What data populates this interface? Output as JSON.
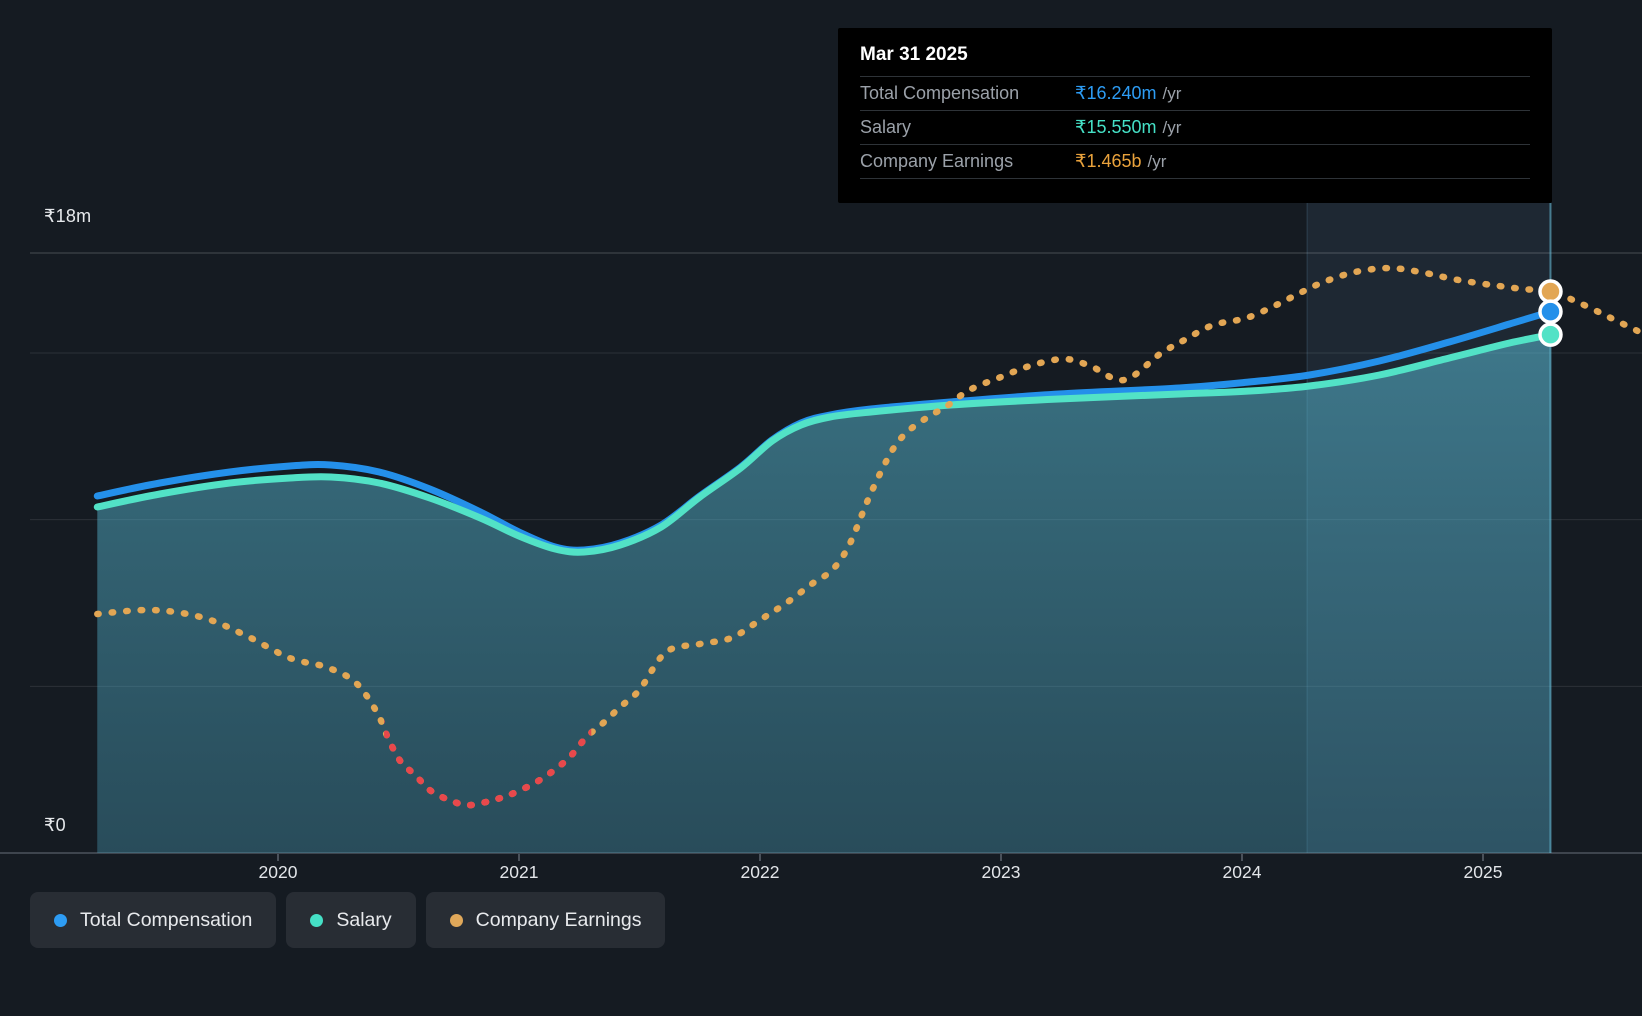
{
  "y_axis": {
    "top_label": "₹18m",
    "bottom_label": "₹0"
  },
  "x_axis": {
    "ticks": [
      "2020",
      "2021",
      "2022",
      "2023",
      "2024",
      "2025"
    ]
  },
  "tooltip": {
    "title": "Mar 31 2025",
    "rows": [
      {
        "label": "Total Compensation",
        "value": "₹16.240m",
        "suffix": "/yr",
        "color": "#2d9cf4"
      },
      {
        "label": "Salary",
        "value": "₹15.550m",
        "suffix": "/yr",
        "color": "#45e0c6"
      },
      {
        "label": "Company Earnings",
        "value": "₹1.465b",
        "suffix": "/yr",
        "color": "#e9a23c"
      }
    ]
  },
  "legend": [
    {
      "label": "Total Compensation",
      "color": "#2d9cf4"
    },
    {
      "label": "Salary",
      "color": "#45e0c6"
    },
    {
      "label": "Company Earnings",
      "color": "#e0a85a"
    }
  ],
  "colors": {
    "background": "#151b22",
    "total_line": "#2490ea",
    "salary_line": "#52e2c6",
    "earnings_line": "#e2a654",
    "earnings_negative": "#e8484c",
    "fill_top": "rgba(88,185,210,0.55)",
    "fill_bottom": "rgba(70,150,175,0.40)",
    "band": "rgba(140,200,255,0.08)",
    "band_edge": "rgba(150,210,255,0.18)",
    "marker_line": "rgba(110,200,230,0.55)",
    "grid": "rgba(255,255,255,0.10)",
    "grid_top": "rgba(255,255,255,0.22)",
    "axis": "#3e454e",
    "tick": "#4a515a"
  },
  "chart_data": {
    "type": "line",
    "title": "",
    "x_unit": "fiscal year (decimal)",
    "x_range": [
      2019.25,
      2025.66
    ],
    "y_left": {
      "unit": "₹m/yr",
      "range_m": [
        0,
        18
      ],
      "gridlines_m": [
        18,
        15,
        10,
        5,
        0
      ],
      "labeled_gridlines": {
        "18": "₹18m",
        "0": "₹0"
      }
    },
    "y_earnings": {
      "unit": "₹b/yr",
      "note": "separate implicit scale; red dots = negative earnings"
    },
    "highlight_band_years": [
      2024.27,
      2025.28
    ],
    "marker": {
      "date": "Mar 31 2025",
      "year": 2025.28,
      "total_compensation_m": 16.24,
      "salary_m": 15.55,
      "company_earnings_b": 1.465
    },
    "series": [
      {
        "name": "Total Compensation",
        "unit": "₹m/yr",
        "style": "solid",
        "points": [
          [
            2019.25,
            10.71
          ],
          [
            2019.51,
            11.1
          ],
          [
            2019.8,
            11.43
          ],
          [
            2020.05,
            11.61
          ],
          [
            2020.22,
            11.64
          ],
          [
            2020.42,
            11.43
          ],
          [
            2020.63,
            10.92
          ],
          [
            2020.84,
            10.23
          ],
          [
            2021.0,
            9.63
          ],
          [
            2021.15,
            9.18
          ],
          [
            2021.27,
            9.09
          ],
          [
            2021.42,
            9.3
          ],
          [
            2021.59,
            9.84
          ],
          [
            2021.75,
            10.71
          ],
          [
            2021.92,
            11.58
          ],
          [
            2022.05,
            12.39
          ],
          [
            2022.17,
            12.9
          ],
          [
            2022.29,
            13.14
          ],
          [
            2022.46,
            13.32
          ],
          [
            2022.79,
            13.53
          ],
          [
            2023.24,
            13.77
          ],
          [
            2023.74,
            13.95
          ],
          [
            2024.03,
            14.13
          ],
          [
            2024.28,
            14.34
          ],
          [
            2024.57,
            14.76
          ],
          [
            2024.86,
            15.33
          ],
          [
            2025.11,
            15.87
          ],
          [
            2025.28,
            16.24
          ]
        ]
      },
      {
        "name": "Salary",
        "unit": "₹m/yr",
        "style": "solid",
        "area": true,
        "points": [
          [
            2019.25,
            10.38
          ],
          [
            2019.51,
            10.77
          ],
          [
            2019.8,
            11.1
          ],
          [
            2020.05,
            11.25
          ],
          [
            2020.22,
            11.28
          ],
          [
            2020.42,
            11.1
          ],
          [
            2020.63,
            10.65
          ],
          [
            2020.84,
            10.05
          ],
          [
            2021.0,
            9.51
          ],
          [
            2021.15,
            9.12
          ],
          [
            2021.27,
            9.03
          ],
          [
            2021.42,
            9.24
          ],
          [
            2021.59,
            9.78
          ],
          [
            2021.75,
            10.68
          ],
          [
            2021.92,
            11.55
          ],
          [
            2022.05,
            12.36
          ],
          [
            2022.17,
            12.84
          ],
          [
            2022.29,
            13.08
          ],
          [
            2022.46,
            13.23
          ],
          [
            2022.79,
            13.44
          ],
          [
            2023.24,
            13.62
          ],
          [
            2023.74,
            13.77
          ],
          [
            2024.03,
            13.86
          ],
          [
            2024.28,
            14.01
          ],
          [
            2024.57,
            14.34
          ],
          [
            2024.86,
            14.85
          ],
          [
            2025.11,
            15.3
          ],
          [
            2025.28,
            15.55
          ]
        ]
      },
      {
        "name": "Company Earnings",
        "unit": "₹b/yr",
        "style": "dotted",
        "negative_segment_years": [
          2020.44,
          2021.3
        ],
        "points": [
          [
            2019.25,
            0.39
          ],
          [
            2019.43,
            0.403
          ],
          [
            2019.57,
            0.397
          ],
          [
            2019.72,
            0.37
          ],
          [
            2019.88,
            0.313
          ],
          [
            2020.05,
            0.243
          ],
          [
            2020.2,
            0.213
          ],
          [
            2020.32,
            0.163
          ],
          [
            2020.41,
            0.063
          ],
          [
            2020.46,
            -0.03
          ],
          [
            2020.51,
            -0.103
          ],
          [
            2020.57,
            -0.147
          ],
          [
            2020.63,
            -0.197
          ],
          [
            2020.71,
            -0.23
          ],
          [
            2020.79,
            -0.247
          ],
          [
            2020.88,
            -0.233
          ],
          [
            2020.96,
            -0.213
          ],
          [
            2021.05,
            -0.18
          ],
          [
            2021.13,
            -0.14
          ],
          [
            2021.21,
            -0.087
          ],
          [
            2021.28,
            -0.02
          ],
          [
            2021.34,
            0.02
          ],
          [
            2021.42,
            0.08
          ],
          [
            2021.5,
            0.137
          ],
          [
            2021.61,
            0.263
          ],
          [
            2021.75,
            0.29
          ],
          [
            2021.88,
            0.31
          ],
          [
            2022.0,
            0.37
          ],
          [
            2022.11,
            0.427
          ],
          [
            2022.22,
            0.493
          ],
          [
            2022.3,
            0.537
          ],
          [
            2022.37,
            0.62
          ],
          [
            2022.46,
            0.793
          ],
          [
            2022.55,
            0.937
          ],
          [
            2022.62,
            1.003
          ],
          [
            2022.71,
            1.053
          ],
          [
            2022.77,
            1.08
          ],
          [
            2022.87,
            1.137
          ],
          [
            2023.0,
            1.18
          ],
          [
            2023.12,
            1.217
          ],
          [
            2023.26,
            1.24
          ],
          [
            2023.37,
            1.217
          ],
          [
            2023.51,
            1.17
          ],
          [
            2023.66,
            1.257
          ],
          [
            2023.76,
            1.303
          ],
          [
            2023.88,
            1.353
          ],
          [
            2024.02,
            1.377
          ],
          [
            2024.15,
            1.423
          ],
          [
            2024.24,
            1.46
          ],
          [
            2024.34,
            1.497
          ],
          [
            2024.47,
            1.53
          ],
          [
            2024.61,
            1.543
          ],
          [
            2024.74,
            1.53
          ],
          [
            2024.9,
            1.503
          ],
          [
            2025.07,
            1.483
          ],
          [
            2025.17,
            1.473
          ],
          [
            2025.28,
            1.465
          ],
          [
            2025.4,
            1.427
          ],
          [
            2025.53,
            1.377
          ],
          [
            2025.65,
            1.33
          ]
        ]
      }
    ]
  }
}
